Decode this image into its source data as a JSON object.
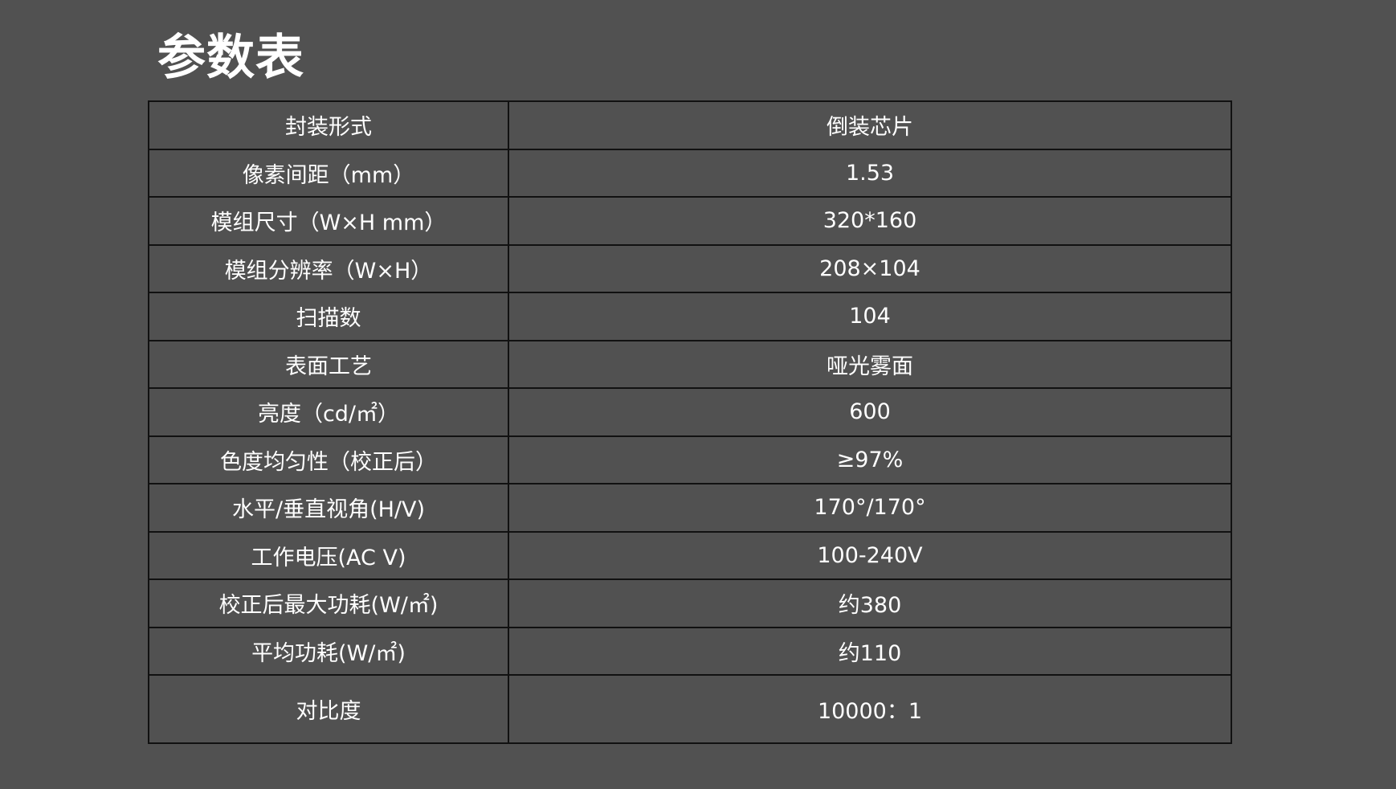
{
  "title": "参数表",
  "rows": [
    {
      "label": "封装形式",
      "value": "倒装芯片"
    },
    {
      "label": "像素间距（mm）",
      "value": "1.53"
    },
    {
      "label": "模组尺寸（W×H mm）",
      "value": "320*160"
    },
    {
      "label": "模组分辨率（W×H）",
      "value": "208×104"
    },
    {
      "label": "扫描数",
      "value": "104"
    },
    {
      "label": "表面工艺",
      "value": "哑光雾面"
    },
    {
      "label": "亮度（cd/㎡）",
      "value": "600"
    },
    {
      "label": "色度均匀性（校正后）",
      "value": "≥97%"
    },
    {
      "label": "水平/垂直视角(H/V)",
      "value": "170°/170°"
    },
    {
      "label": "工作电压(AC V)",
      "value": "100-240V"
    },
    {
      "label": "校正后最大功耗(W/㎡)",
      "value": "约380"
    },
    {
      "label": "平均功耗(W/㎡)",
      "value": "约110"
    },
    {
      "label": "对比度",
      "value": "10000：1"
    }
  ]
}
